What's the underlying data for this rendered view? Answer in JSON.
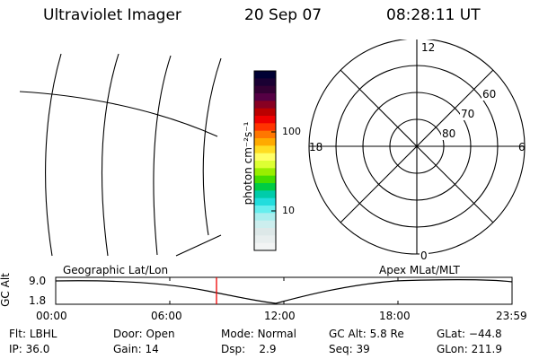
{
  "header": {
    "title": "Ultraviolet Imager",
    "date": "20 Sep 07",
    "time": "08:28:11 UT"
  },
  "colorbar": {
    "unit_label": "photon cm⁻²s⁻¹",
    "tick_labels": [
      "100",
      "10"
    ],
    "colors": [
      "#000033",
      "#1a0033",
      "#330033",
      "#550044",
      "#880022",
      "#bb0000",
      "#ee0000",
      "#ff3300",
      "#ff7700",
      "#ffaa00",
      "#ffdd22",
      "#ffff66",
      "#ddff33",
      "#99ee00",
      "#44dd00",
      "#00cc44",
      "#00ccaa",
      "#22dddd",
      "#66eeee",
      "#aaeeee",
      "#cceeee",
      "#dde8e8",
      "#e8eeee",
      "#f2f4f4"
    ]
  },
  "polar": {
    "mlt_labels": {
      "top": "12",
      "left": "18",
      "right": "6",
      "bottom": "0"
    },
    "lat_labels": [
      "60",
      "70",
      "80"
    ]
  },
  "timeline": {
    "y_label": "GC Alt",
    "y_ticks": [
      "9.0",
      "1.8"
    ],
    "left_title": "Geographic Lat/Lon",
    "right_title": "Apex MLat/MLT",
    "x_ticks": [
      "00:00",
      "06:00",
      "12:00",
      "18:00",
      "23:59"
    ],
    "marker_time": "08:28:11"
  },
  "status": {
    "row1": [
      {
        "label": "Flt:",
        "value": "LBHL"
      },
      {
        "label": "Door:",
        "value": "Open"
      },
      {
        "label": "Mode:",
        "value": "Normal"
      },
      {
        "label": "GC Alt:",
        "value": "5.8 Re"
      },
      {
        "label": "GLat:",
        "value": "−44.8"
      }
    ],
    "row2": [
      {
        "label": "IP:",
        "value": "36.0"
      },
      {
        "label": "Gain:",
        "value": "14"
      },
      {
        "label": "Dsp:",
        "value": "2.9"
      },
      {
        "label": "Seq:",
        "value": "39"
      },
      {
        "label": "GLon:",
        "value": "211.9"
      }
    ]
  }
}
